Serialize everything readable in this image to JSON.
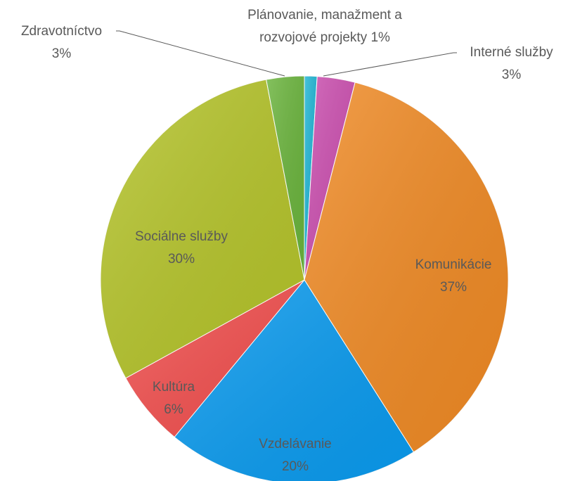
{
  "chart_data": {
    "type": "pie",
    "categories": [
      "Plánovanie, manažment a rozvojové projekty",
      "Interné služby",
      "Komunikácie",
      "Vzdelávanie",
      "Kultúra",
      "Sociálne služby",
      "Zdravotníctvo"
    ],
    "values": [
      1,
      3,
      37,
      20,
      6,
      30,
      3
    ],
    "value_labels": [
      "1%",
      "3%",
      "37%",
      "20%",
      "6%",
      "30%",
      "3%"
    ],
    "colors": [
      "#1fb5d4",
      "#cc4fb0",
      "#f08a24",
      "#0a9bef",
      "#f3504f",
      "#b5c42a",
      "#6ab43c"
    ],
    "start_angle": 0,
    "direction": "clockwise"
  }
}
